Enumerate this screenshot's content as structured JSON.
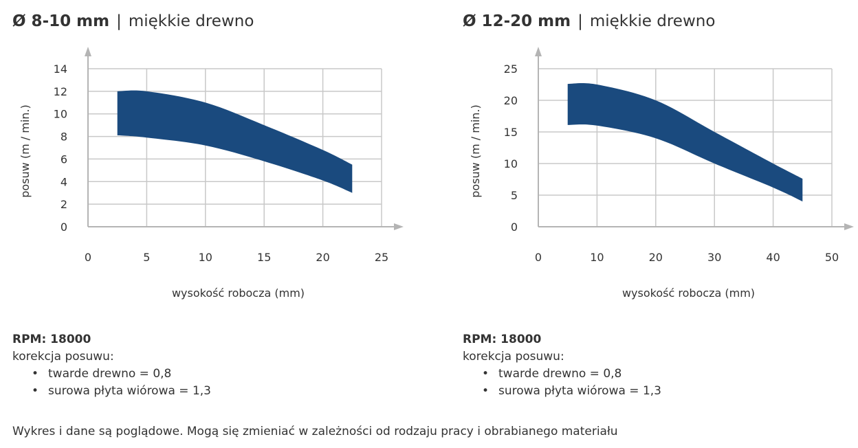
{
  "panels": [
    {
      "title_diameter": "Ø 8-10 mm",
      "title_separator": "|",
      "title_material": "miękkie drewno",
      "rpm": "RPM: 18000",
      "correction_label": "korekcja posuwu:",
      "corrections": [
        "twarde drewno = 0,8",
        "surowa płyta wiórowa = 1,3"
      ]
    },
    {
      "title_diameter": "Ø 12-20 mm",
      "title_separator": "|",
      "title_material": "miękkie drewno",
      "rpm": "RPM: 18000",
      "correction_label": "korekcja posuwu:",
      "corrections": [
        "twarde drewno = 0,8",
        "surowa płyta wiórowa = 1,3"
      ]
    }
  ],
  "footer_note": "Wykres i dane są poglądowe. Mogą się zmieniać w zależności od rodzaju pracy i obrabianego materiału",
  "colors": {
    "band": "#1a4a7e",
    "grid": "#c8c8c8",
    "axis": "#b4b4b4",
    "text": "#333333"
  },
  "chart_data": [
    {
      "type": "area",
      "xlabel": "wysokość robocza (mm)",
      "ylabel": "posuw (m / min.)",
      "xlim": [
        0,
        25
      ],
      "ylim": [
        0,
        14
      ],
      "xticks": [
        0,
        5,
        10,
        15,
        20,
        25
      ],
      "yticks": [
        0,
        2,
        4,
        6,
        8,
        10,
        12,
        14
      ],
      "grid": true,
      "band": {
        "upper": [
          [
            2.5,
            12
          ],
          [
            5,
            12
          ],
          [
            10,
            11
          ],
          [
            15,
            9
          ],
          [
            20,
            6.8
          ],
          [
            22.5,
            5.5
          ]
        ],
        "lower": [
          [
            2.5,
            8.1
          ],
          [
            5,
            7.9
          ],
          [
            10,
            7.2
          ],
          [
            15,
            5.8
          ],
          [
            20,
            4.1
          ],
          [
            22.5,
            3
          ]
        ]
      }
    },
    {
      "type": "area",
      "xlabel": "wysokość robocza (mm)",
      "ylabel": "posuw (m / min.)",
      "xlim": [
        0,
        50
      ],
      "ylim": [
        0,
        25
      ],
      "xticks": [
        0,
        10,
        20,
        30,
        40,
        50
      ],
      "yticks": [
        0,
        5,
        10,
        15,
        20,
        25
      ],
      "grid": true,
      "band": {
        "upper": [
          [
            5,
            22.6
          ],
          [
            10,
            22.5
          ],
          [
            20,
            20
          ],
          [
            30,
            15
          ],
          [
            40,
            10
          ],
          [
            45,
            7.6
          ]
        ],
        "lower": [
          [
            5,
            16.1
          ],
          [
            10,
            16
          ],
          [
            20,
            14
          ],
          [
            30,
            10
          ],
          [
            40,
            6.2
          ],
          [
            45,
            4
          ]
        ]
      }
    }
  ]
}
